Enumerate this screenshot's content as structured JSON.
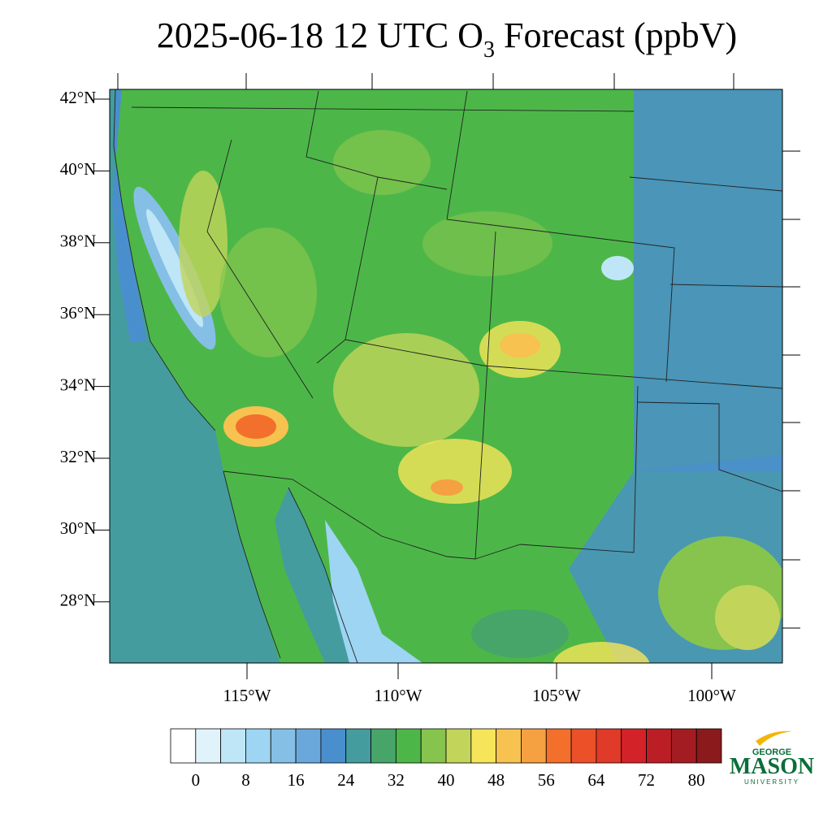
{
  "map": {
    "title_main": "2025-06-18 12 UTC O",
    "title_sub": "3",
    "title_rest": " Forecast (ppbV)",
    "lat_labels": [
      "42°N",
      "40°N",
      "38°N",
      "36°N",
      "34°N",
      "32°N",
      "30°N",
      "28°N"
    ],
    "lon_labels": [
      "115°W",
      "110°W",
      "105°W",
      "100°W"
    ]
  },
  "colorbar": {
    "colors": [
      "#ffffff",
      "#e0f3fb",
      "#bfe6f7",
      "#9dd5f2",
      "#86bfe6",
      "#6aa8dc",
      "#4a8fcd",
      "#449c9e",
      "#47a56a",
      "#4cb748",
      "#86c44e",
      "#c2d55a",
      "#f6e55a",
      "#f7c24f",
      "#f5a041",
      "#f26f2c",
      "#ec5028",
      "#e03a28",
      "#d42328",
      "#bc1e25",
      "#a31c22",
      "#8b1a1c"
    ],
    "labels": [
      0,
      8,
      16,
      24,
      32,
      40,
      48,
      56,
      64,
      72,
      80
    ],
    "step": 4
  },
  "logo": {
    "top": "GEORGE",
    "name": "MASON",
    "bottom": "UNIVERSITY"
  }
}
